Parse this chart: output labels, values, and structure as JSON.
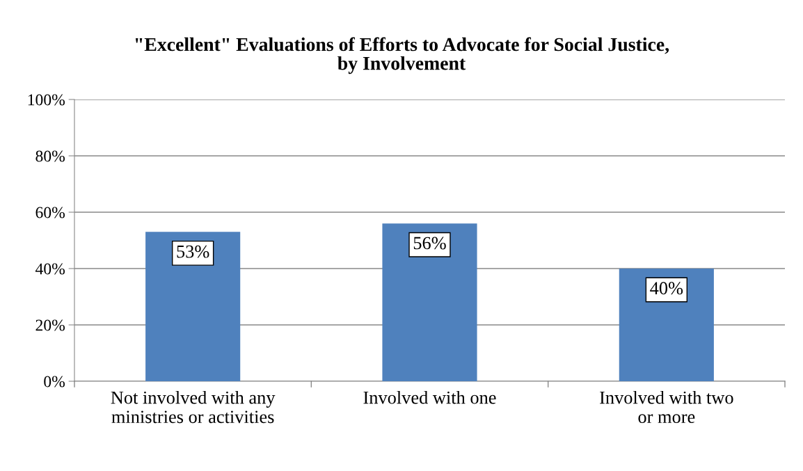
{
  "chart_data": {
    "type": "bar",
    "title": "\"Excellent\" Evaluations of Efforts to Advocate for Social Justice,\nby Involvement",
    "categories": [
      "Not involved with any\nministries or activities",
      "Involved with one",
      "Involved with two\nor more"
    ],
    "values": [
      53,
      56,
      40
    ],
    "color": "#4f81bd",
    "value_labels": [
      "53%",
      "56%",
      "40%"
    ],
    "ylim": [
      0,
      100
    ],
    "yticks": [
      {
        "value": 0,
        "label": "0%"
      },
      {
        "value": 20,
        "label": "20%"
      },
      {
        "value": 40,
        "label": "40%"
      },
      {
        "value": 60,
        "label": "60%"
      },
      {
        "value": 80,
        "label": "80%"
      },
      {
        "value": 100,
        "label": "100%"
      }
    ],
    "grid": "y",
    "legend": false
  }
}
